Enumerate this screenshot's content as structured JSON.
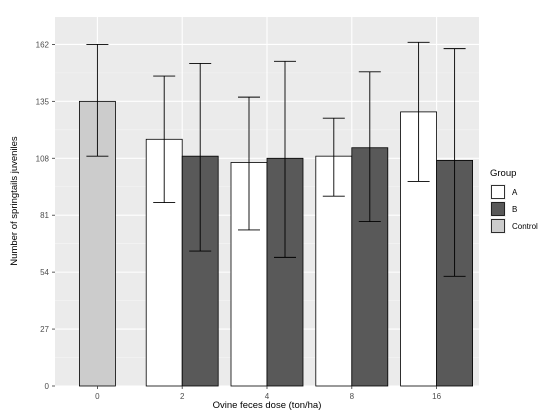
{
  "chart_data": {
    "type": "bar",
    "xlabel": "Ovine feces dose  (ton/ha)",
    "ylabel": "Number of springtails juveniles",
    "ylim": [
      0,
      175
    ],
    "yticks": [
      0,
      27,
      54,
      81,
      108,
      135,
      162
    ],
    "categories": [
      "0",
      "2",
      "4",
      "8",
      "16"
    ],
    "grid": true,
    "legend": {
      "title": "Group",
      "position": "right",
      "entries": [
        {
          "name": "A",
          "color": "#ffffff"
        },
        {
          "name": "B",
          "color": "#595959"
        },
        {
          "name": "Control",
          "color": "#cccccc"
        }
      ]
    },
    "error_bars": true,
    "series": [
      {
        "name": "Control",
        "color": "#cccccc",
        "values": [
          135,
          null,
          null,
          null,
          null
        ],
        "err_low": [
          109,
          null,
          null,
          null,
          null
        ],
        "err_high": [
          162,
          null,
          null,
          null,
          null
        ]
      },
      {
        "name": "A",
        "color": "#ffffff",
        "values": [
          null,
          117,
          106,
          109,
          130
        ],
        "err_low": [
          null,
          87,
          74,
          90,
          97
        ],
        "err_high": [
          null,
          147,
          137,
          127,
          163
        ]
      },
      {
        "name": "B",
        "color": "#595959",
        "values": [
          null,
          109,
          108,
          113,
          107
        ],
        "err_low": [
          null,
          64,
          61,
          78,
          52
        ],
        "err_high": [
          null,
          153,
          154,
          149,
          160
        ]
      }
    ]
  }
}
